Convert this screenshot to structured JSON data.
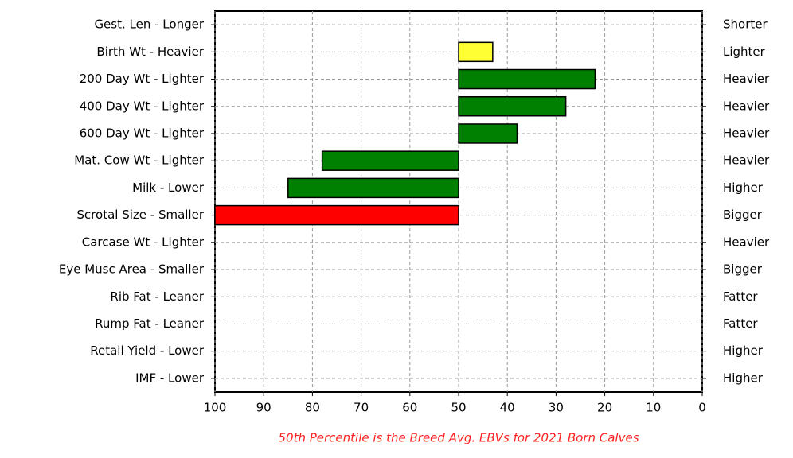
{
  "chart_data": {
    "type": "barh",
    "categories": [
      "Gest. Len - Longer",
      "Birth Wt - Heavier",
      "200 Day Wt - Lighter",
      "400 Day Wt - Lighter",
      "600 Day Wt - Lighter",
      "Mat. Cow Wt - Lighter",
      "Milk - Lower",
      "Scrotal Size - Smaller",
      "Carcase Wt - Lighter",
      "Eye Musc Area - Smaller",
      "Rib Fat - Leaner",
      "Rump Fat - Leaner",
      "Retail Yield - Lower",
      "IMF - Lower"
    ],
    "right_labels": [
      "Shorter",
      "Lighter",
      "Heavier",
      "Heavier",
      "Heavier",
      "Heavier",
      "Higher",
      "Bigger",
      "Heavier",
      "Bigger",
      "Fatter",
      "Fatter",
      "Higher",
      "Higher"
    ],
    "values": [
      null,
      43,
      22,
      28,
      38,
      78,
      85,
      100,
      null,
      null,
      null,
      null,
      null,
      null
    ],
    "colors": [
      null,
      "#ffff33",
      "#008000",
      "#008000",
      "#008000",
      "#008000",
      "#008000",
      "#ff0000",
      null,
      null,
      null,
      null,
      null,
      null
    ],
    "base": 50,
    "xlim": [
      100,
      0
    ],
    "xticks": [
      100,
      90,
      80,
      70,
      60,
      50,
      40,
      30,
      20,
      10,
      0
    ],
    "grid": true,
    "caption": "50th Percentile is the Breed Avg. EBVs for 2021 Born Calves"
  }
}
